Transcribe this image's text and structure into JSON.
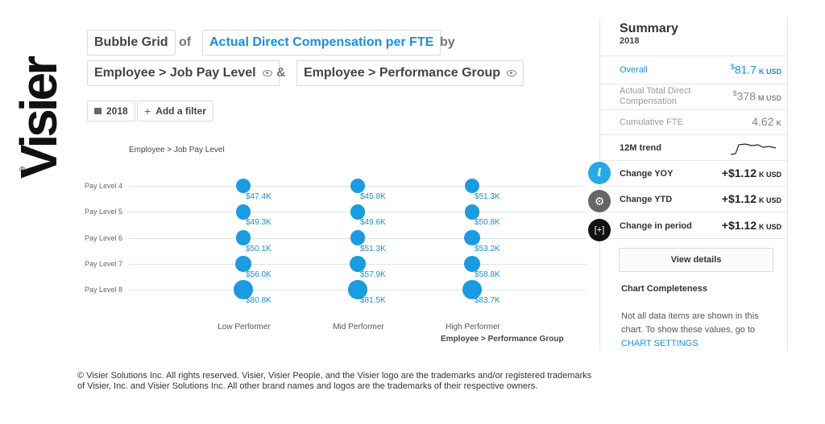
{
  "brand": {
    "logo_text": "Visier",
    "registered_mark": "®"
  },
  "query": {
    "analysis_type": "Bubble Grid",
    "word_of": "of",
    "metric": "Actual Direct Compensation per FTE",
    "word_by": "by",
    "dimension_1": "Employee > Job Pay Level",
    "word_and": "&",
    "dimension_2": "Employee > Performance Group"
  },
  "filters": {
    "year": "2018",
    "add_filter": "Add a filter"
  },
  "chart_data": {
    "type": "bubble-grid",
    "y_title": "Employee > Job Pay Level",
    "x_title": "Employee > Performance Group",
    "rows": [
      "Pay Level 4",
      "Pay Level 5",
      "Pay Level 6",
      "Pay Level 7",
      "Pay Level 8"
    ],
    "columns": [
      "Low Performer",
      "Mid Performer",
      "High Performer"
    ],
    "values": [
      [
        47.4,
        45.8,
        51.3
      ],
      [
        49.3,
        49.6,
        50.8
      ],
      [
        50.1,
        51.3,
        53.2
      ],
      [
        56.0,
        57.9,
        58.8
      ],
      [
        80.8,
        81.5,
        83.7
      ]
    ],
    "labels": [
      [
        "$47.4K",
        "$45.8K",
        "$51.3K"
      ],
      [
        "$49.3K",
        "$49.6K",
        "$50.8K"
      ],
      [
        "$50.1K",
        "$51.3K",
        "$53.2K"
      ],
      [
        "$56.0K",
        "$57.9K",
        "$58.8K"
      ],
      [
        "$80.8K",
        "$81.5K",
        "$83.7K"
      ]
    ],
    "unit": "K USD",
    "color": "#1b9be0"
  },
  "summary": {
    "title": "Summary",
    "year": "2018",
    "overall": {
      "label": "Overall",
      "currency": "$",
      "value": "81.7",
      "unit": "K USD"
    },
    "total": {
      "label": "Actual Total Direct Compensation",
      "currency": "$",
      "value": "378",
      "unit": "M USD"
    },
    "fte": {
      "label": "Cumulative FTE",
      "value": "4.62",
      "unit": "K"
    },
    "trend": {
      "label": "12M trend"
    },
    "yoy": {
      "label": "Change YOY",
      "prefix": "+$",
      "value": "1.12",
      "unit": "K USD"
    },
    "ytd": {
      "label": "Change YTD",
      "prefix": "+$",
      "value": "1.12",
      "unit": "K USD"
    },
    "period": {
      "label": "Change in period",
      "prefix": "+$",
      "value": "1.12",
      "unit": "K USD"
    },
    "view_details": "View details",
    "completeness_title": "Chart Completeness",
    "completeness_text": "Not all data items are shown in this chart. To show these values, go to",
    "completeness_link": "CHART SETTINGS"
  },
  "fab": {
    "info_glyph": "i",
    "gear_glyph": "⚙",
    "focus_glyph": "[+]"
  },
  "icons": [
    "eye-icon",
    "calendar-icon",
    "plus-icon",
    "info-icon",
    "gear-icon",
    "focus-icon",
    "trend-sparkline-icon"
  ],
  "colors": {
    "accent": "#1b8fd6",
    "bubble": "#1b9be0"
  },
  "footer": {
    "line1": "© Visier Solutions Inc. All rights reserved. Visier, Visier People, and the Visier logo are the trademarks and/or registered trademarks",
    "line2": "of Visier, Inc. and Visier Solutions Inc. All other brand names and logos are the trademarks of their respective owners."
  }
}
